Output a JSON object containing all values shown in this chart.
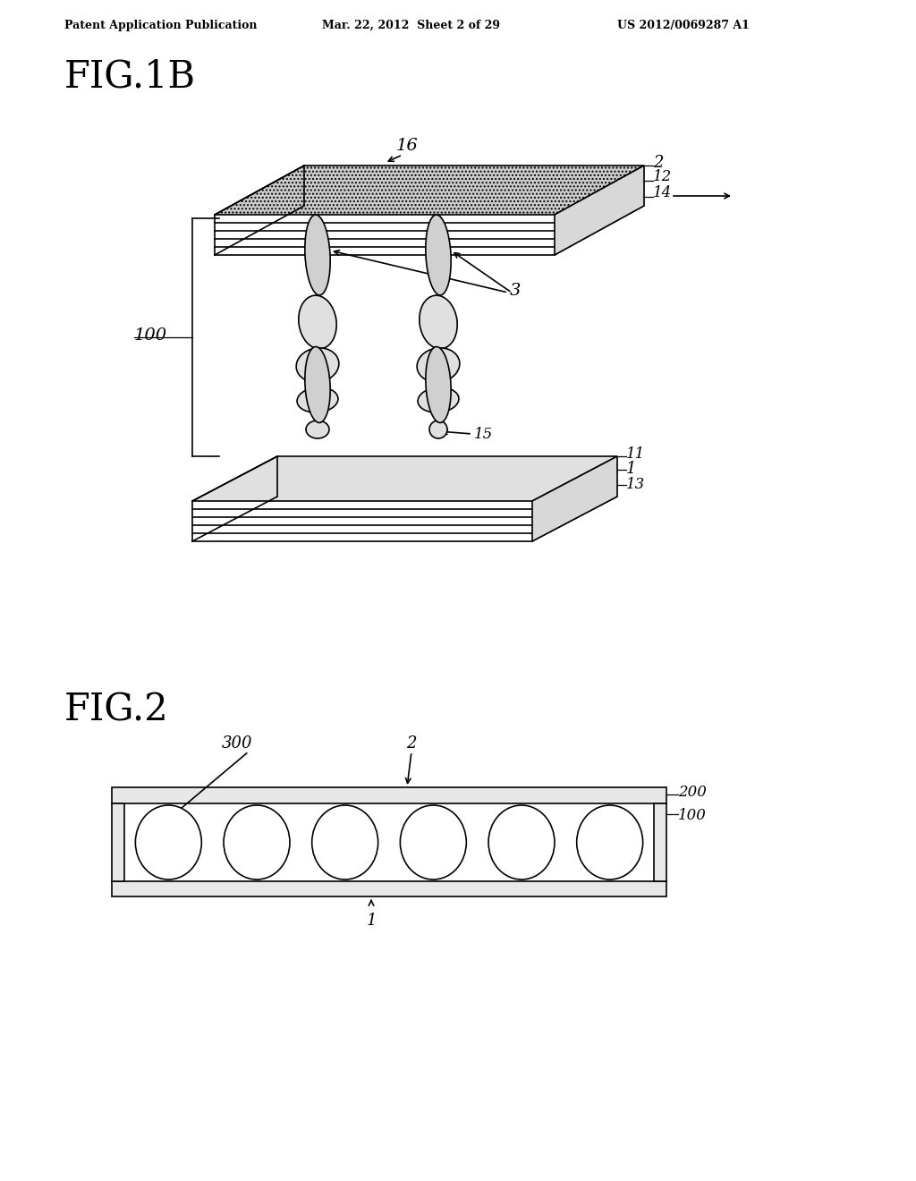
{
  "bg_color": "#ffffff",
  "header_left": "Patent Application Publication",
  "header_mid": "Mar. 22, 2012  Sheet 2 of 29",
  "header_right": "US 2012/0069287 A1",
  "fig1b_label": "FIG.1B",
  "fig2_label": "FIG.2",
  "lc": "#000000",
  "lw": 1.2,
  "top_plate_color": "#c8c8c8",
  "side_plate_color": "#e0e0e0",
  "bot_plate_color": "#e0e0e0",
  "ellipse_fill": "#d4d4d4",
  "ellipse_fill_light": "#e8e8e8"
}
